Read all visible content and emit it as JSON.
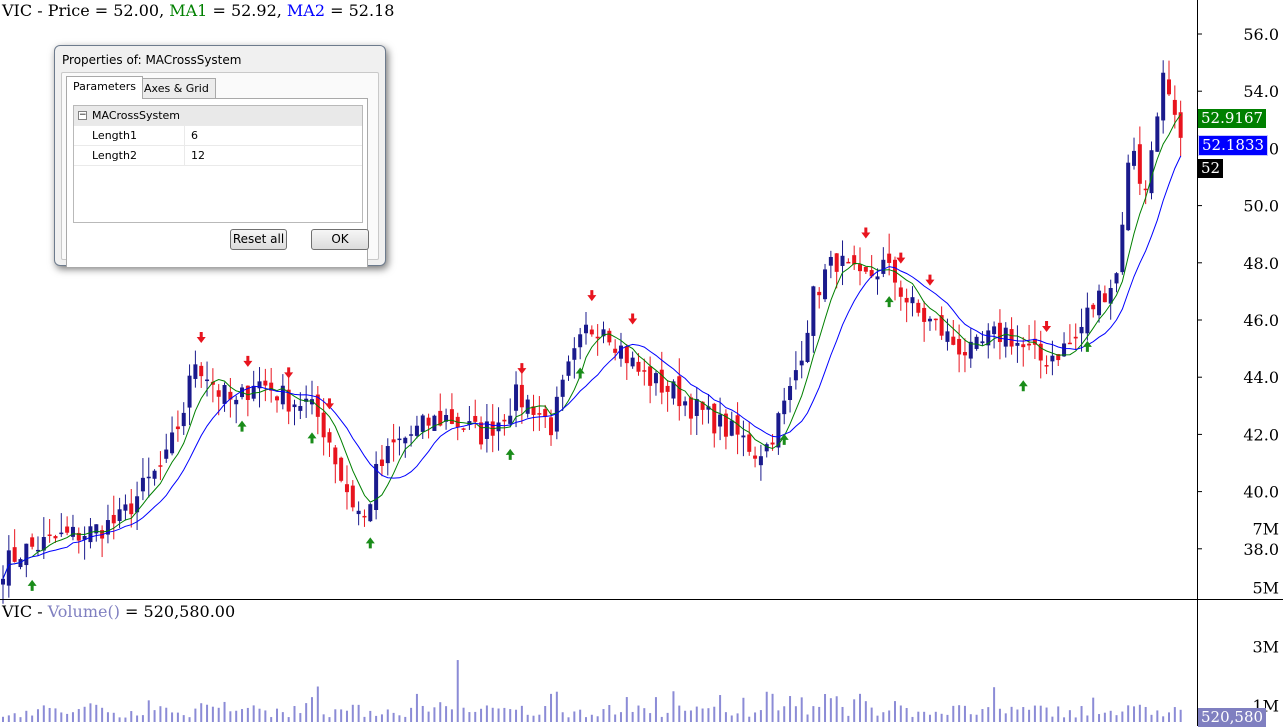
{
  "price_legend": {
    "symbol": "VIC",
    "sep1": " - ",
    "price_label": "Price = ",
    "price": "52.00",
    "sep2": ", ",
    "ma1_label": "MA1",
    "ma1_eq": " = ",
    "ma1": "52.92",
    "sep3": ", ",
    "ma2_label": "MA2",
    "ma2_eq": " = ",
    "ma2": "52.18"
  },
  "volume_legend": {
    "symbol": "VIC",
    "sep1": " - ",
    "vol_label": "Volume()",
    "eq": " = ",
    "value": "520,580.00"
  },
  "tags": {
    "ma1": "52.9167",
    "ma2": "52.1833",
    "price": "52",
    "volume": "520,580"
  },
  "colors": {
    "ma1": "#008000",
    "ma2": "#0000ff",
    "up": "#1a1a8c",
    "down": "#e8141e",
    "volume": "#8b8bd6",
    "price_tag": "#000000",
    "volume_tag": "#7f7fc0"
  },
  "dialog": {
    "title": "Properties of: MACrossSystem",
    "tabs": [
      {
        "label": "Parameters"
      },
      {
        "label": "Axes & Grid"
      }
    ],
    "category": "MACrossSystem",
    "params": [
      {
        "name": "Length1",
        "value": "6"
      },
      {
        "name": "Length2",
        "value": "12"
      }
    ],
    "reset_label": "Reset all",
    "ok_label": "OK"
  },
  "chart_data": {
    "type": "candlestick",
    "price_axis": {
      "ticks": [
        38.0,
        40.0,
        42.0,
        44.0,
        46.0,
        48.0,
        50.0,
        52.0,
        54.0,
        56.0
      ],
      "tick_labels": [
        "38.0",
        "40.0",
        "42.0",
        "44.0",
        "46.0",
        "48.0",
        "50.0",
        "52.0",
        "54.0",
        "56.0"
      ],
      "range": [
        37,
        57
      ]
    },
    "volume_axis": {
      "tick_labels": [
        "7M",
        "5M",
        "3M",
        "1M"
      ],
      "ticks": [
        7000000,
        5000000,
        3000000,
        1000000
      ]
    },
    "close_anchors": [
      [
        0,
        37.4
      ],
      [
        3,
        37.9
      ],
      [
        10,
        38.4
      ],
      [
        15,
        38.6
      ],
      [
        20,
        39.0
      ],
      [
        24,
        40.1
      ],
      [
        28,
        41.1
      ],
      [
        31,
        42.9
      ],
      [
        33,
        44.6
      ],
      [
        35,
        44.1
      ],
      [
        37,
        43.5
      ],
      [
        40,
        43.0
      ],
      [
        43,
        43.9
      ],
      [
        46,
        43.6
      ],
      [
        49,
        43.2
      ],
      [
        52,
        43.1
      ],
      [
        54,
        42.6
      ],
      [
        56,
        41.8
      ],
      [
        58,
        40.5
      ],
      [
        60,
        39.6
      ],
      [
        62,
        39.0
      ],
      [
        64,
        40.6
      ],
      [
        67,
        41.6
      ],
      [
        70,
        42.0
      ],
      [
        73,
        42.4
      ],
      [
        76,
        42.6
      ],
      [
        79,
        42.3
      ],
      [
        82,
        42.0
      ],
      [
        85,
        42.5
      ],
      [
        88,
        43.3
      ],
      [
        91,
        43.0
      ],
      [
        94,
        42.3
      ],
      [
        97,
        44.2
      ],
      [
        100,
        45.6
      ],
      [
        103,
        45.9
      ],
      [
        106,
        45.0
      ],
      [
        109,
        44.2
      ],
      [
        112,
        43.8
      ],
      [
        115,
        43.5
      ],
      [
        118,
        43.0
      ],
      [
        121,
        42.6
      ],
      [
        124,
        42.2
      ],
      [
        127,
        41.8
      ],
      [
        129,
        41.4
      ],
      [
        131,
        41.6
      ],
      [
        133,
        42.5
      ],
      [
        135,
        43.5
      ],
      [
        137,
        45.0
      ],
      [
        139,
        46.8
      ],
      [
        141,
        47.6
      ],
      [
        143,
        48.1
      ],
      [
        145,
        47.7
      ],
      [
        147,
        47.3
      ],
      [
        149,
        47.6
      ],
      [
        151,
        47.9
      ],
      [
        153,
        47.4
      ],
      [
        155,
        46.7
      ],
      [
        157,
        46.2
      ],
      [
        160,
        45.8
      ],
      [
        163,
        45.2
      ],
      [
        166,
        44.8
      ],
      [
        169,
        45.3
      ],
      [
        172,
        45.6
      ],
      [
        175,
        45.0
      ],
      [
        178,
        44.6
      ],
      [
        181,
        44.9
      ],
      [
        184,
        45.3
      ],
      [
        186,
        46.2
      ],
      [
        188,
        46.8
      ],
      [
        190,
        47.3
      ],
      [
        191,
        47.6
      ],
      [
        192,
        49.6
      ],
      [
        193,
        51.3
      ],
      [
        194,
        52.1
      ],
      [
        195,
        51.0
      ],
      [
        196,
        50.4
      ],
      [
        197,
        52.0
      ],
      [
        198,
        53.5
      ],
      [
        199,
        54.4
      ],
      [
        200,
        53.6
      ],
      [
        201,
        52.8
      ],
      [
        202,
        52.0
      ]
    ],
    "sell_signals": [
      34,
      42,
      49,
      56,
      89,
      101,
      108,
      148,
      154,
      159,
      179
    ],
    "buy_signals": [
      5,
      41,
      53,
      63,
      87,
      99,
      134,
      152,
      175,
      186
    ],
    "volume_spike_index": 78
  }
}
